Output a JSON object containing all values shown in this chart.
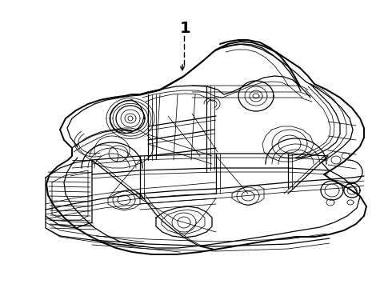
{
  "background_color": "#ffffff",
  "line_color": "#000000",
  "label_number": "1",
  "fig_width": 4.9,
  "fig_height": 3.6,
  "dpi": 100,
  "lw_outer": 1.4,
  "lw_mid": 0.9,
  "lw_thin": 0.55,
  "lw_detail": 0.4
}
